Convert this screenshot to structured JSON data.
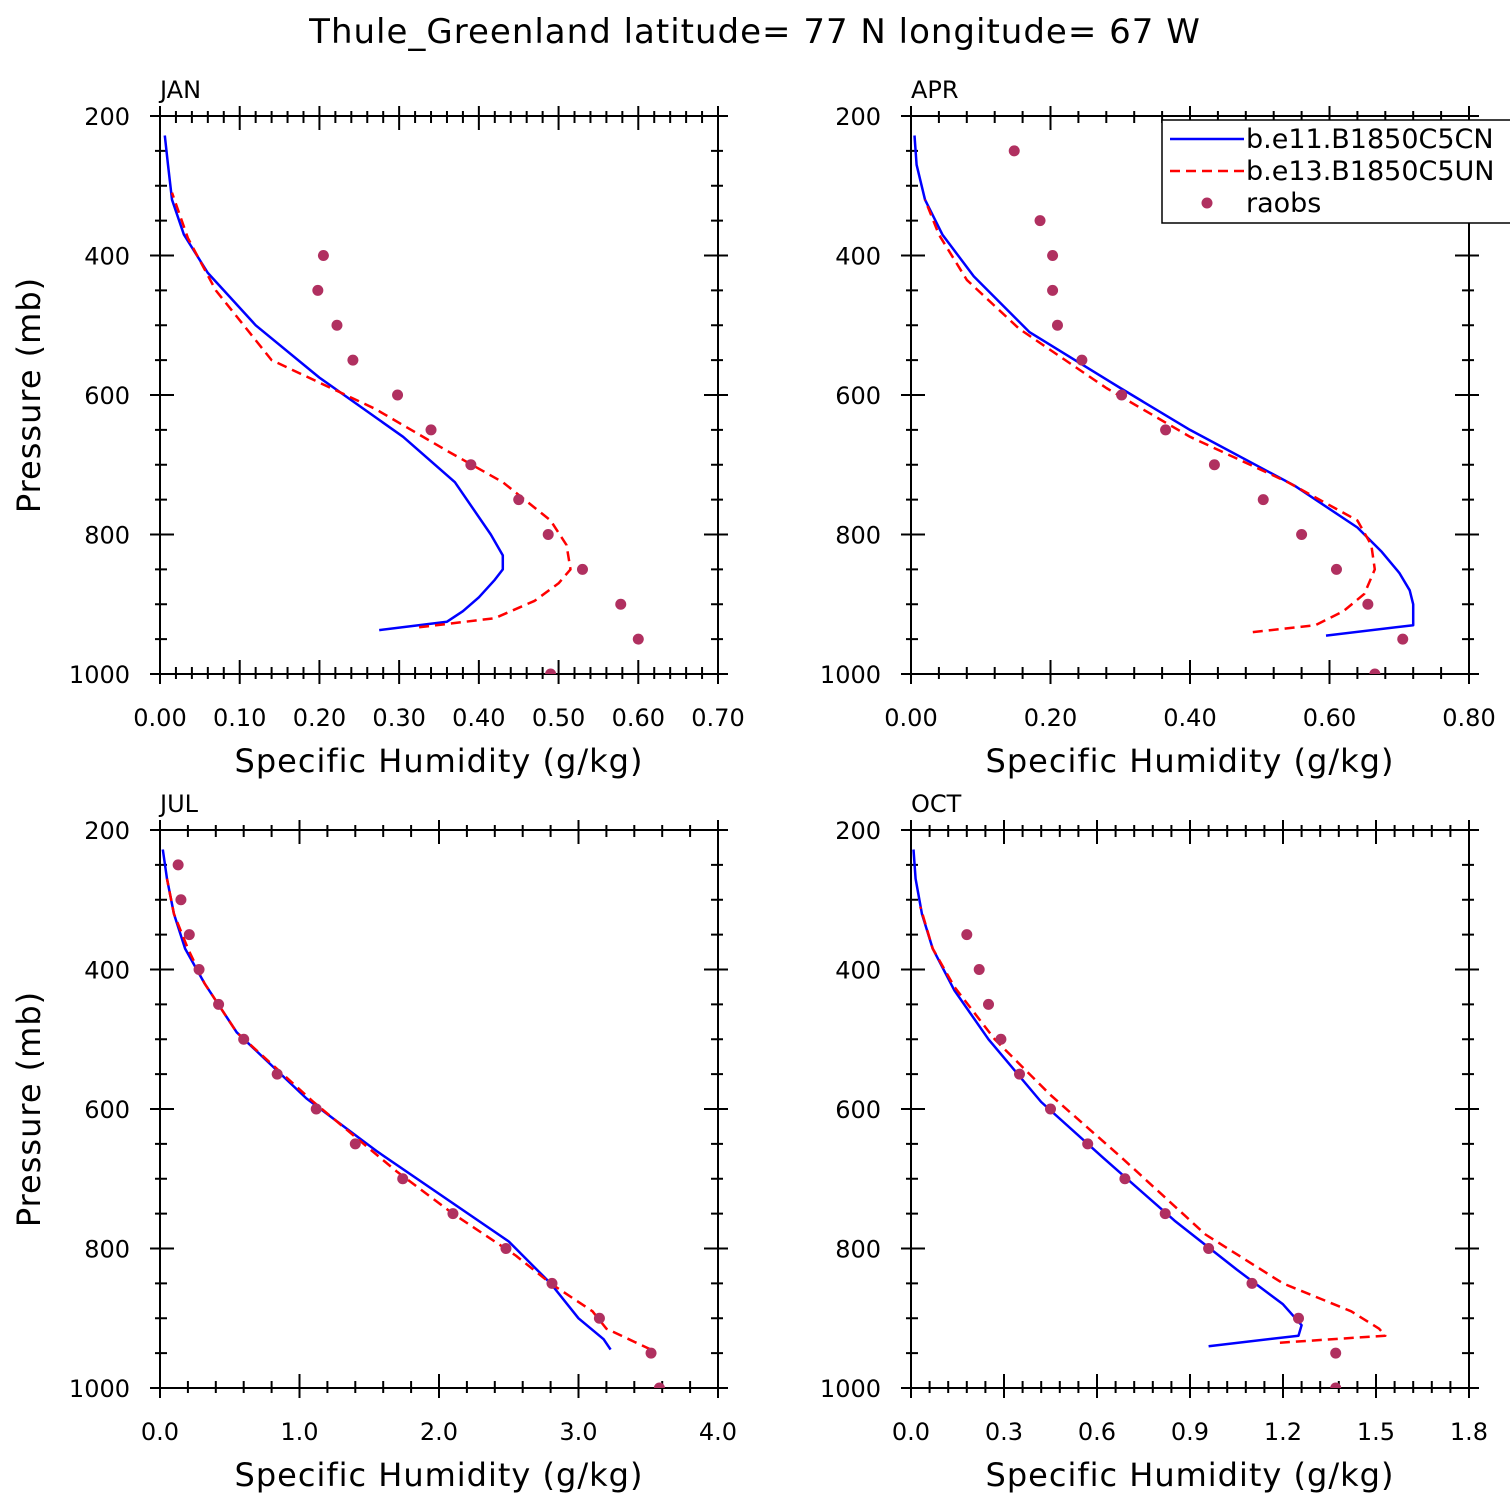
{
  "title": "Thule_Greenland  latitude= 77 N longitude= 67 W",
  "colors": {
    "case1": "#0000ff",
    "case2": "#ff0000",
    "obs": "#b03060"
  },
  "legend": [
    "b.e11.B1850C5CN",
    "b.e13.B1850C5UN",
    "raobs"
  ],
  "chart_data": [
    {
      "type": "line",
      "panel": "JAN",
      "xlabel": "Specific Humidity (g/kg)",
      "ylabel": "Pressure (mb)",
      "xlim": [
        0,
        0.7
      ],
      "ylim": [
        1000,
        200
      ],
      "y_inverted": true,
      "xticks": [
        "0.00",
        "0.10",
        "0.20",
        "0.30",
        "0.40",
        "0.50",
        "0.60",
        "0.70"
      ],
      "yticks": [
        "200",
        "400",
        "600",
        "800",
        "1000"
      ],
      "series": [
        {
          "name": "b.e11.B1850C5CN",
          "style": "solid",
          "x": [
            0.275,
            0.36,
            0.38,
            0.4,
            0.42,
            0.43,
            0.43,
            0.415,
            0.37,
            0.305,
            0.2,
            0.12,
            0.06,
            0.03,
            0.015,
            0.01,
            0.006
          ],
          "y": [
            937,
            925,
            910,
            890,
            865,
            850,
            830,
            800,
            725,
            660,
            575,
            500,
            425,
            370,
            320,
            270,
            228
          ]
        },
        {
          "name": "b.e13.B1850C5UN",
          "style": "dashed",
          "x": [
            0.325,
            0.42,
            0.47,
            0.5,
            0.515,
            0.51,
            0.49,
            0.43,
            0.36,
            0.27,
            0.14,
            0.07,
            0.035,
            0.015
          ],
          "y": [
            933,
            920,
            895,
            870,
            850,
            815,
            780,
            725,
            680,
            620,
            550,
            450,
            375,
            310
          ]
        }
      ],
      "points": {
        "name": "raobs",
        "x": [
          0.205,
          0.198,
          0.222,
          0.242,
          0.298,
          0.34,
          0.39,
          0.45,
          0.487,
          0.53,
          0.578,
          0.6,
          0.49
        ],
        "y": [
          400,
          450,
          500,
          550,
          600,
          650,
          700,
          750,
          800,
          850,
          900,
          950,
          1000
        ]
      }
    },
    {
      "type": "line",
      "panel": "APR",
      "xlabel": "Specific Humidity (g/kg)",
      "ylabel": "",
      "xlim": [
        0,
        0.8
      ],
      "ylim": [
        1000,
        200
      ],
      "y_inverted": true,
      "xticks": [
        "0.00",
        "0.20",
        "0.40",
        "0.60",
        "0.80"
      ],
      "yticks": [
        "200",
        "400",
        "600",
        "800",
        "1000"
      ],
      "series": [
        {
          "name": "b.e11.B1850C5CN",
          "style": "solid",
          "x": [
            0.595,
            0.72,
            0.72,
            0.715,
            0.7,
            0.675,
            0.64,
            0.55,
            0.4,
            0.3,
            0.17,
            0.09,
            0.045,
            0.02,
            0.008,
            0.005
          ],
          "y": [
            945,
            930,
            900,
            880,
            855,
            825,
            790,
            730,
            650,
            590,
            510,
            430,
            370,
            320,
            270,
            228
          ]
        },
        {
          "name": "b.e13.B1850C5UN",
          "style": "dashed",
          "x": [
            0.49,
            0.58,
            0.62,
            0.65,
            0.665,
            0.66,
            0.64,
            0.54,
            0.4,
            0.28,
            0.155,
            0.08,
            0.04,
            0.02
          ],
          "y": [
            940,
            930,
            910,
            885,
            850,
            815,
            780,
            725,
            660,
            590,
            505,
            435,
            370,
            320
          ]
        }
      ],
      "points": {
        "name": "raobs",
        "x": [
          0.148,
          0.185,
          0.203,
          0.203,
          0.21,
          0.245,
          0.302,
          0.365,
          0.435,
          0.505,
          0.56,
          0.61,
          0.655,
          0.705,
          0.665
        ],
        "y": [
          250,
          350,
          400,
          450,
          500,
          550,
          600,
          650,
          700,
          750,
          800,
          850,
          900,
          950,
          1000
        ]
      }
    },
    {
      "type": "line",
      "panel": "JUL",
      "xlabel": "Specific Humidity (g/kg)",
      "ylabel": "Pressure (mb)",
      "xlim": [
        0,
        4
      ],
      "ylim": [
        1000,
        200
      ],
      "y_inverted": true,
      "xticks": [
        "0.0",
        "1.0",
        "2.0",
        "3.0",
        "4.0"
      ],
      "yticks": [
        "200",
        "400",
        "600",
        "800",
        "1000"
      ],
      "series": [
        {
          "name": "b.e11.B1850C5CN",
          "style": "solid",
          "x": [
            3.23,
            3.18,
            3.0,
            2.8,
            2.65,
            2.5,
            1.55,
            1.05,
            0.55,
            0.32,
            0.18,
            0.1,
            0.05,
            0.02
          ],
          "y": [
            945,
            930,
            900,
            850,
            820,
            790,
            660,
            585,
            490,
            420,
            370,
            320,
            270,
            228
          ]
        },
        {
          "name": "b.e13.B1850C5UN",
          "style": "dashed",
          "x": [
            3.52,
            3.2,
            3.1,
            2.8,
            2.55,
            2.1,
            1.7,
            1.1,
            0.55,
            0.32,
            0.2,
            0.1,
            0.05
          ],
          "y": [
            945,
            915,
            890,
            850,
            810,
            750,
            690,
            590,
            490,
            420,
            370,
            320,
            270
          ]
        }
      ],
      "points": {
        "name": "raobs",
        "x": [
          0.13,
          0.15,
          0.21,
          0.28,
          0.42,
          0.6,
          0.84,
          1.12,
          1.4,
          1.74,
          2.1,
          2.48,
          2.81,
          3.15,
          3.52,
          3.58
        ],
        "y": [
          250,
          300,
          350,
          400,
          450,
          500,
          550,
          600,
          650,
          700,
          750,
          800,
          850,
          900,
          950,
          1000
        ]
      }
    },
    {
      "type": "line",
      "panel": "OCT",
      "xlabel": "Specific Humidity (g/kg)",
      "ylabel": "",
      "xlim": [
        0,
        1.8
      ],
      "ylim": [
        1000,
        200
      ],
      "y_inverted": true,
      "xticks": [
        "0.0",
        "0.3",
        "0.6",
        "0.9",
        "1.2",
        "1.5",
        "1.8"
      ],
      "yticks": [
        "200",
        "400",
        "600",
        "800",
        "1000"
      ],
      "series": [
        {
          "name": "b.e11.B1850C5CN",
          "style": "solid",
          "x": [
            0.96,
            1.25,
            1.26,
            1.2,
            1.05,
            0.85,
            0.62,
            0.42,
            0.25,
            0.14,
            0.07,
            0.035,
            0.015,
            0.008
          ],
          "y": [
            940,
            925,
            910,
            880,
            830,
            760,
            670,
            590,
            500,
            430,
            370,
            320,
            270,
            228
          ]
        },
        {
          "name": "b.e13.B1850C5UN",
          "style": "dashed",
          "x": [
            1.19,
            1.53,
            1.51,
            1.42,
            1.2,
            0.95,
            0.68,
            0.45,
            0.27,
            0.14,
            0.07,
            0.03
          ],
          "y": [
            935,
            925,
            915,
            890,
            850,
            780,
            670,
            580,
            500,
            425,
            370,
            310
          ]
        }
      ],
      "points": {
        "name": "raobs",
        "x": [
          0.18,
          0.22,
          0.25,
          0.29,
          0.35,
          0.45,
          0.57,
          0.69,
          0.82,
          0.96,
          1.1,
          1.25,
          1.37,
          1.37
        ],
        "y": [
          350,
          400,
          450,
          500,
          550,
          600,
          650,
          700,
          750,
          800,
          850,
          900,
          950,
          1000
        ]
      }
    }
  ]
}
